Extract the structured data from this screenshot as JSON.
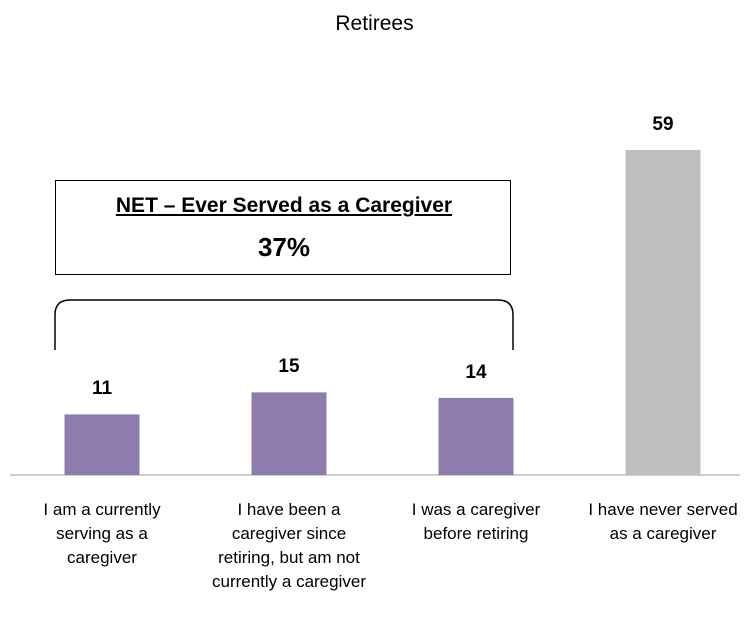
{
  "chart_data": {
    "type": "bar",
    "title": "Retirees",
    "categories": [
      "I am a currently serving as a caregiver",
      "I have been a caregiver since retiring, but am not currently a caregiver",
      "I was a caregiver before retiring",
      "I have never served as a caregiver"
    ],
    "values": [
      11,
      15,
      14,
      59
    ],
    "colors": [
      "#8e7cac",
      "#8e7cac",
      "#8e7cac",
      "#bfbfbf"
    ],
    "annotation": {
      "title": "NET – Ever Served as a Caregiver",
      "value": "37%"
    }
  }
}
